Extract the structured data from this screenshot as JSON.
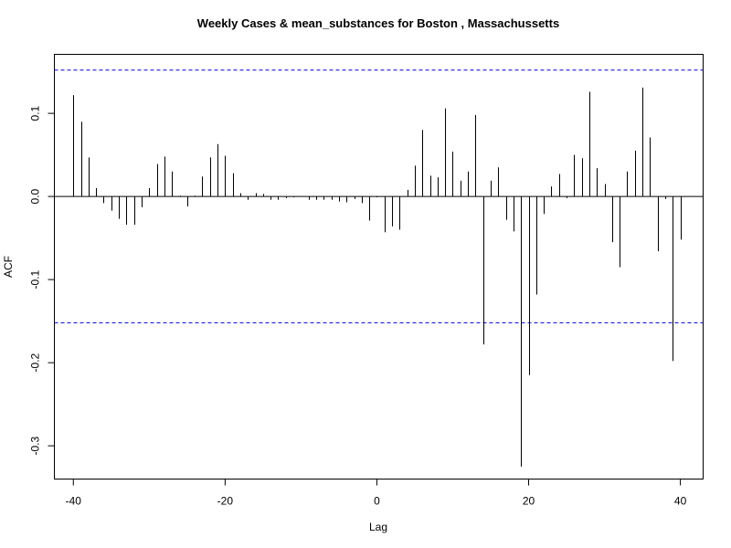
{
  "chart_data": {
    "type": "bar",
    "title": "Weekly Cases & mean_substances for Boston , Massachussetts",
    "xlabel": "Lag",
    "ylabel": "ACF",
    "xlim": [
      -42.5,
      43
    ],
    "ylim": [
      -0.34,
      0.171
    ],
    "x_ticks": [
      -40,
      -20,
      0,
      20,
      40
    ],
    "x_tick_labels": [
      "-40",
      "-20",
      "0",
      "20",
      "40"
    ],
    "y_ticks": [
      -0.3,
      -0.2,
      -0.1,
      0.0,
      0.1
    ],
    "y_tick_labels": [
      "-0.3",
      "-0.2",
      "-0.1",
      "0.0",
      "0.1"
    ],
    "confidence_band": [
      0.152,
      -0.152
    ],
    "confidence_color": "#0000cc",
    "grid": false,
    "legend": "none",
    "x": [
      -40,
      -39,
      -38,
      -37,
      -36,
      -35,
      -34,
      -33,
      -32,
      -31,
      -30,
      -29,
      -28,
      -27,
      -26,
      -25,
      -24,
      -23,
      -22,
      -21,
      -20,
      -19,
      -18,
      -17,
      -16,
      -15,
      -14,
      -13,
      -12,
      -11,
      -10,
      -9,
      -8,
      -7,
      -6,
      -5,
      -4,
      -3,
      -2,
      -1,
      0,
      1,
      2,
      3,
      4,
      5,
      6,
      7,
      8,
      9,
      10,
      11,
      12,
      13,
      14,
      15,
      16,
      17,
      18,
      19,
      20,
      21,
      22,
      23,
      24,
      25,
      26,
      27,
      28,
      29,
      30,
      31,
      32,
      33,
      34,
      35,
      36,
      37,
      38,
      39,
      40
    ],
    "values": [
      0.122,
      0.09,
      0.047,
      0.01,
      -0.008,
      -0.017,
      -0.027,
      -0.034,
      -0.034,
      -0.013,
      0.01,
      0.039,
      0.048,
      0.03,
      0.001,
      -0.012,
      0.001,
      0.024,
      0.047,
      0.063,
      0.049,
      0.028,
      0.004,
      -0.004,
      0.004,
      0.003,
      -0.004,
      -0.004,
      -0.002,
      -0.001,
      0.0,
      -0.004,
      -0.004,
      -0.004,
      -0.004,
      -0.006,
      -0.007,
      -0.003,
      -0.008,
      -0.029,
      -0.001,
      -0.043,
      -0.036,
      -0.04,
      0.008,
      0.037,
      0.08,
      0.025,
      0.023,
      0.106,
      0.054,
      0.019,
      0.03,
      0.098,
      -0.178,
      0.019,
      0.035,
      -0.028,
      -0.042,
      -0.325,
      -0.215,
      -0.118,
      -0.021,
      0.012,
      0.027,
      -0.002,
      0.05,
      0.046,
      0.126,
      0.034,
      0.015,
      -0.055,
      -0.085,
      0.03,
      0.055,
      0.131,
      0.071,
      -0.066,
      -0.003,
      -0.198,
      -0.052
    ]
  }
}
